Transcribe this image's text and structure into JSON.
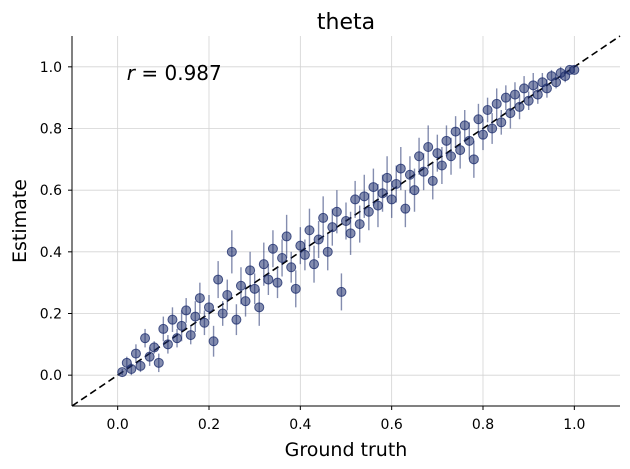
{
  "chart_data": {
    "type": "scatter",
    "title": "theta",
    "xlabel": "Ground truth",
    "ylabel": "Estimate",
    "xlim": [
      -0.1,
      1.1
    ],
    "ylim": [
      -0.1,
      1.1
    ],
    "xticks": [
      "0.0",
      "0.2",
      "0.4",
      "0.6",
      "0.8",
      "1.0"
    ],
    "yticks": [
      "0.0",
      "0.2",
      "0.4",
      "0.6",
      "0.8",
      "1.0"
    ],
    "grid": true,
    "annotation": {
      "var": "r",
      "text": " = 0.987",
      "position": "top-left"
    },
    "reference_line": {
      "style": "dashed",
      "from": [
        -0.1,
        -0.1
      ],
      "to": [
        1.1,
        1.1
      ],
      "color": "#000000"
    },
    "marker_color": "#1f2f6e",
    "series": [
      {
        "points": [
          [
            0.01,
            0.01,
            0.01
          ],
          [
            0.02,
            0.04,
            0.02
          ],
          [
            0.03,
            0.02,
            0.02
          ],
          [
            0.04,
            0.07,
            0.03
          ],
          [
            0.05,
            0.03,
            0.02
          ],
          [
            0.06,
            0.12,
            0.03
          ],
          [
            0.07,
            0.06,
            0.03
          ],
          [
            0.08,
            0.09,
            0.02
          ],
          [
            0.09,
            0.04,
            0.03
          ],
          [
            0.1,
            0.15,
            0.04
          ],
          [
            0.11,
            0.1,
            0.03
          ],
          [
            0.12,
            0.18,
            0.04
          ],
          [
            0.13,
            0.12,
            0.03
          ],
          [
            0.14,
            0.16,
            0.05
          ],
          [
            0.15,
            0.21,
            0.04
          ],
          [
            0.16,
            0.13,
            0.03
          ],
          [
            0.17,
            0.19,
            0.05
          ],
          [
            0.18,
            0.25,
            0.05
          ],
          [
            0.19,
            0.17,
            0.04
          ],
          [
            0.2,
            0.22,
            0.04
          ],
          [
            0.21,
            0.11,
            0.05
          ],
          [
            0.22,
            0.31,
            0.06
          ],
          [
            0.23,
            0.2,
            0.04
          ],
          [
            0.24,
            0.26,
            0.05
          ],
          [
            0.25,
            0.4,
            0.07
          ],
          [
            0.26,
            0.18,
            0.05
          ],
          [
            0.27,
            0.29,
            0.06
          ],
          [
            0.28,
            0.24,
            0.05
          ],
          [
            0.29,
            0.34,
            0.06
          ],
          [
            0.3,
            0.28,
            0.05
          ],
          [
            0.31,
            0.22,
            0.06
          ],
          [
            0.32,
            0.36,
            0.07
          ],
          [
            0.33,
            0.31,
            0.05
          ],
          [
            0.34,
            0.41,
            0.06
          ],
          [
            0.35,
            0.3,
            0.05
          ],
          [
            0.36,
            0.38,
            0.06
          ],
          [
            0.37,
            0.45,
            0.07
          ],
          [
            0.38,
            0.35,
            0.05
          ],
          [
            0.39,
            0.28,
            0.06
          ],
          [
            0.4,
            0.42,
            0.06
          ],
          [
            0.41,
            0.39,
            0.05
          ],
          [
            0.42,
            0.47,
            0.07
          ],
          [
            0.43,
            0.36,
            0.06
          ],
          [
            0.44,
            0.44,
            0.06
          ],
          [
            0.45,
            0.51,
            0.07
          ],
          [
            0.46,
            0.4,
            0.06
          ],
          [
            0.47,
            0.48,
            0.06
          ],
          [
            0.48,
            0.53,
            0.07
          ],
          [
            0.49,
            0.27,
            0.06
          ],
          [
            0.5,
            0.5,
            0.06
          ],
          [
            0.51,
            0.46,
            0.07
          ],
          [
            0.52,
            0.57,
            0.06
          ],
          [
            0.53,
            0.49,
            0.06
          ],
          [
            0.54,
            0.58,
            0.07
          ],
          [
            0.55,
            0.53,
            0.06
          ],
          [
            0.56,
            0.61,
            0.06
          ],
          [
            0.57,
            0.55,
            0.07
          ],
          [
            0.58,
            0.59,
            0.06
          ],
          [
            0.59,
            0.64,
            0.07
          ],
          [
            0.6,
            0.57,
            0.06
          ],
          [
            0.61,
            0.62,
            0.06
          ],
          [
            0.62,
            0.67,
            0.07
          ],
          [
            0.63,
            0.54,
            0.06
          ],
          [
            0.64,
            0.65,
            0.06
          ],
          [
            0.65,
            0.6,
            0.07
          ],
          [
            0.66,
            0.71,
            0.06
          ],
          [
            0.67,
            0.66,
            0.06
          ],
          [
            0.68,
            0.74,
            0.07
          ],
          [
            0.69,
            0.63,
            0.06
          ],
          [
            0.7,
            0.72,
            0.06
          ],
          [
            0.71,
            0.68,
            0.06
          ],
          [
            0.72,
            0.76,
            0.05
          ],
          [
            0.73,
            0.71,
            0.06
          ],
          [
            0.74,
            0.79,
            0.05
          ],
          [
            0.75,
            0.73,
            0.06
          ],
          [
            0.76,
            0.81,
            0.05
          ],
          [
            0.77,
            0.76,
            0.06
          ],
          [
            0.78,
            0.7,
            0.06
          ],
          [
            0.79,
            0.83,
            0.05
          ],
          [
            0.8,
            0.78,
            0.05
          ],
          [
            0.81,
            0.86,
            0.04
          ],
          [
            0.82,
            0.8,
            0.05
          ],
          [
            0.83,
            0.88,
            0.05
          ],
          [
            0.84,
            0.82,
            0.04
          ],
          [
            0.85,
            0.9,
            0.04
          ],
          [
            0.86,
            0.85,
            0.05
          ],
          [
            0.87,
            0.91,
            0.04
          ],
          [
            0.88,
            0.87,
            0.04
          ],
          [
            0.89,
            0.93,
            0.04
          ],
          [
            0.9,
            0.89,
            0.03
          ],
          [
            0.91,
            0.94,
            0.04
          ],
          [
            0.92,
            0.91,
            0.03
          ],
          [
            0.93,
            0.95,
            0.03
          ],
          [
            0.94,
            0.93,
            0.03
          ],
          [
            0.95,
            0.97,
            0.02
          ],
          [
            0.96,
            0.95,
            0.02
          ],
          [
            0.97,
            0.98,
            0.02
          ],
          [
            0.98,
            0.97,
            0.02
          ],
          [
            0.99,
            0.99,
            0.01
          ],
          [
            1.0,
            0.99,
            0.01
          ]
        ]
      }
    ]
  }
}
